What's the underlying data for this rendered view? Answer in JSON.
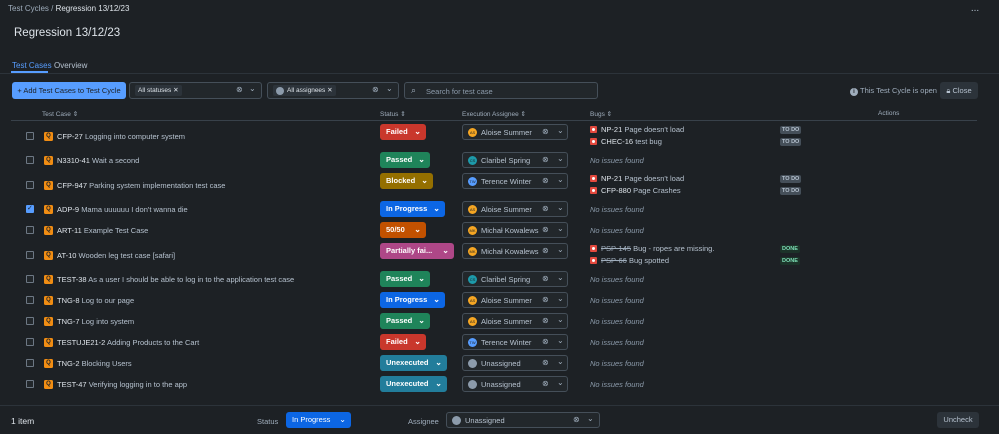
{
  "breadcrumb": {
    "parent": "Test Cycles",
    "sep": " / ",
    "current": "Regression 13/12/23"
  },
  "more_label": "...",
  "page_title": "Regression 13/12/23",
  "tabs": [
    {
      "label": "Test Cases",
      "active": true
    },
    {
      "label": "Overview",
      "active": false
    }
  ],
  "toolbar": {
    "add_label": "+ Add Test Cases to Test Cycle",
    "status_filter": "All statuses",
    "assignee_filter": "All assignees",
    "search_placeholder": "Search for test case",
    "open_info": "This Test Cycle is open",
    "close_label": "Close"
  },
  "columns": {
    "test_case": "Test Case",
    "status": "Status",
    "assignee": "Execution Assignee",
    "bugs": "Bugs",
    "actions": "Actions"
  },
  "rows": [
    {
      "key": "CFP-27",
      "title": "Logging into computer system",
      "status": "Failed",
      "assignee": "Aloise Summer",
      "initials": "AS",
      "checked": false,
      "bugs": [
        {
          "key": "NP-21",
          "title": "Page doesn't load",
          "lozenge": "TO DO",
          "done": false
        },
        {
          "key": "CHEC-16",
          "title": "test bug",
          "lozenge": "TO DO",
          "done": false
        }
      ]
    },
    {
      "key": "N3310-41",
      "title": "Wait a second",
      "status": "Passed",
      "assignee": "Claribel Spring",
      "initials": "CS",
      "checked": false,
      "bugs": []
    },
    {
      "key": "CFP-947",
      "title": "Parking system implementation test case",
      "status": "Blocked",
      "assignee": "Terence Winter",
      "initials": "TW",
      "checked": false,
      "bugs": [
        {
          "key": "NP-21",
          "title": "Page doesn't load",
          "lozenge": "TO DO",
          "done": false
        },
        {
          "key": "CFP-880",
          "title": "Page Crashes",
          "lozenge": "TO DO",
          "done": false
        }
      ]
    },
    {
      "key": "ADP-9",
      "title": "Mama uuuuuu I don't wanna die",
      "status": "In Progress",
      "assignee": "Aloise Summer",
      "initials": "AS",
      "checked": true,
      "bugs": []
    },
    {
      "key": "ART-11",
      "title": "Example Test Case",
      "status": "50/50",
      "assignee": "Michał Kowalews",
      "initials": "MK",
      "checked": false,
      "bugs": []
    },
    {
      "key": "AT-10",
      "title": "Wooden leg test case [safari]",
      "status": "Partially fai...",
      "assignee": "Michał Kowalews",
      "initials": "MK",
      "checked": false,
      "bugs": [
        {
          "key": "PSP-145",
          "title": "Bug - ropes are missing.",
          "lozenge": "DONE",
          "done": true
        },
        {
          "key": "PSP-66",
          "title": "Bug spotted",
          "lozenge": "DONE",
          "done": true
        }
      ]
    },
    {
      "key": "TEST-38",
      "title": "As a user I should be able to log in to the application test case",
      "status": "Passed",
      "assignee": "Claribel Spring",
      "initials": "CS",
      "checked": false,
      "bugs": []
    },
    {
      "key": "TNG-8",
      "title": "Log to our page",
      "status": "In Progress",
      "assignee": "Aloise Summer",
      "initials": "AS",
      "checked": false,
      "bugs": []
    },
    {
      "key": "TNG-7",
      "title": "Log into system",
      "status": "Passed",
      "assignee": "Aloise Summer",
      "initials": "AS",
      "checked": false,
      "bugs": []
    },
    {
      "key": "TESTUJE21-2",
      "title": "Adding Products to the Cart",
      "status": "Failed",
      "assignee": "Terence Winter",
      "initials": "TW",
      "checked": false,
      "bugs": []
    },
    {
      "key": "TNG-2",
      "title": "Blocking Users",
      "status": "Unexecuted",
      "assignee": "Unassigned",
      "initials": "",
      "checked": false,
      "bugs": []
    },
    {
      "key": "TEST-47",
      "title": "Verifying logging in to the app",
      "status": "Unexecuted",
      "assignee": "Unassigned",
      "initials": "",
      "checked": false,
      "bugs": []
    }
  ],
  "no_issues_text": "No issues found",
  "status_colors": {
    "Failed": "#c9372c",
    "Passed": "#1f845a",
    "Blocked": "#946f00",
    "In Progress": "#0c66e4",
    "50/50": "#c25100",
    "Partially fai...": "#ae4787",
    "Unexecuted": "#227d9b"
  },
  "avatar_colors": {
    "AS": "#f5a623",
    "CS": "#1d9aaa",
    "TW": "#579dff",
    "MK": "#f5a623"
  },
  "footer": {
    "count": "1 item",
    "status_label": "Status",
    "status_value": "In Progress",
    "assignee_label": "Assignee",
    "assignee_value": "Unassigned",
    "uncheck_label": "Uncheck"
  }
}
